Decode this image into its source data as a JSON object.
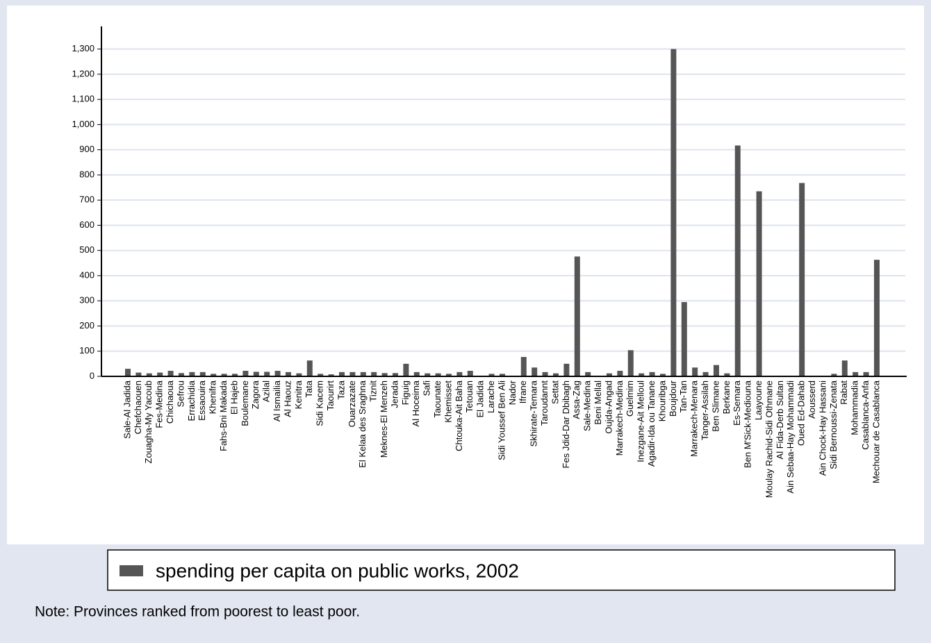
{
  "chart_data": {
    "type": "bar",
    "categories": [
      "Sale-Al Jadida",
      "Chefchaouen",
      "Zouagha-My Yacoub",
      "Fes-Medina",
      "Chichaoua",
      "Sefrou",
      "Errachidia",
      "Essaouira",
      "Khenifra",
      "Fahs-Bni Makada",
      "El Hajeb",
      "Boulemane",
      "Zagora",
      "Azilal",
      "Al Ismailia",
      "Al Haouz",
      "Kenitra",
      "Tata",
      "Sidi Kacem",
      "Taourirt",
      "Taza",
      "Ouarzazate",
      "El Kelaa des Sraghna",
      "Tiznit",
      "Meknes-El Menzeh",
      "Jerada",
      "Figuig",
      "Al Hoceima",
      "Safi",
      "Taounate",
      "Khemisset",
      "Chtouka-Ait Baha",
      "Tetouan",
      "El Jadida",
      "Larache",
      "Sidi Youssef Ben Ali",
      "Nador",
      "Ifrane",
      "Skhirate-Temara",
      "Taroudannt",
      "Settat",
      "Fes Jdid-Dar Dbibagh",
      "Assa-Zag",
      "Sale-Medina",
      "Beni Mellal",
      "Oujda-Angad",
      "Marrakech-Medina",
      "Guelmim",
      "Inezgane-Ait Melloul",
      "Agadir-Ida ou Tanane",
      "Khouribga",
      "Boujdour",
      "Tan-Tan",
      "Marrakech-Menara",
      "Tanger-Assilah",
      "Ben Slimane",
      "Berkane",
      "Es-Semara",
      "Ben M'Sick-Mediouna",
      "Laayoune",
      "Moulay Rachid-Sidi Othmane",
      "Al Fida-Derb Sultan",
      "Ain Sebaa-Hay Mohammadi",
      "Oued Ed-Dahab",
      "Aousserd",
      "Ain Chock-Hay Hassani",
      "Sidi Bernoussi-Zenata",
      "Rabat",
      "Mohammadia",
      "Casablanca-Anfa",
      "Mechouar de Casablanca"
    ],
    "series": [
      {
        "name": "spending per capita on public works, 2002",
        "color": "#555555",
        "values": [
          30,
          15,
          12,
          15,
          22,
          13,
          17,
          17,
          10,
          10,
          10,
          22,
          18,
          18,
          22,
          17,
          12,
          63,
          10,
          8,
          17,
          17,
          17,
          17,
          13,
          13,
          50,
          17,
          12,
          12,
          10,
          17,
          22,
          0,
          10,
          10,
          0,
          77,
          35,
          17,
          12,
          50,
          476,
          17,
          0,
          12,
          22,
          104,
          12,
          17,
          10,
          1300,
          295,
          35,
          17,
          45,
          12,
          917,
          0,
          735,
          0,
          0,
          0,
          768,
          0,
          0,
          10,
          63,
          17,
          17,
          463
        ]
      }
    ],
    "ylim": [
      0,
      1390
    ],
    "yticks": [
      0,
      100,
      200,
      300,
      400,
      500,
      600,
      700,
      800,
      900,
      {
        "value": 1000,
        "label": "1,000"
      },
      {
        "value": 1100,
        "label": "1,100"
      },
      {
        "value": 1200,
        "label": "1,200"
      },
      {
        "value": 1300,
        "label": "1,300"
      }
    ],
    "grid": true,
    "legend": "bottom",
    "note": "Note: Provinces ranked from poorest to least poor."
  }
}
